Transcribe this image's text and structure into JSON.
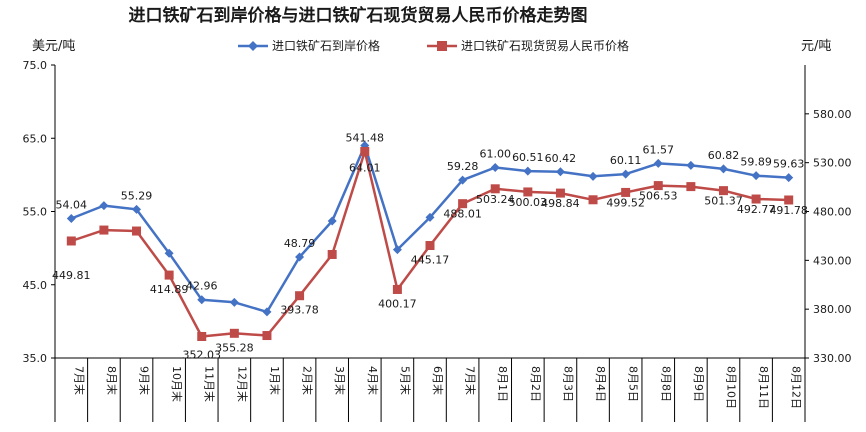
{
  "chart_data": {
    "type": "line",
    "title": "进口铁矿石到岸价格与进口铁矿石现货贸易人民币价格走势图",
    "left_unit": "美元/吨",
    "right_unit": "元/吨",
    "categories": [
      "7月末",
      "8月末",
      "9月末",
      "10月末",
      "11月末",
      "12月末",
      "1月末",
      "2月末",
      "3月末",
      "4月末",
      "5月末",
      "6月末",
      "7月末",
      "8月1日",
      "8月2日",
      "8月3日",
      "8月4日",
      "8月5日",
      "8月8日",
      "8月9日",
      "8月10日",
      "8月11日",
      "8月12日"
    ],
    "left_axis": {
      "min": 35,
      "max": 75,
      "ticks": [
        "35.0",
        "45.0",
        "55.0",
        "65.0",
        "75.0"
      ]
    },
    "right_axis": {
      "min": 330,
      "max": 630,
      "ticks": [
        "330.00",
        "380.00",
        "430.00",
        "480.00",
        "530.00",
        "580.00"
      ]
    },
    "legend_position": "top",
    "series": [
      {
        "name": "进口铁矿石到岸价格",
        "axis": "left",
        "color": "#4472c4",
        "marker": "diamond",
        "values": [
          54.04,
          55.8,
          55.29,
          49.3,
          42.96,
          42.6,
          41.3,
          48.79,
          53.7,
          64.01,
          49.8,
          54.2,
          59.28,
          61.0,
          60.51,
          60.42,
          59.8,
          60.11,
          61.57,
          61.3,
          60.82,
          59.89,
          59.63
        ],
        "labels": [
          "54.04",
          "",
          "55.29",
          "",
          "42.96",
          "",
          "",
          "48.79",
          "",
          "64.01",
          "",
          "",
          "59.28",
          "61.00",
          "60.51",
          "60.42",
          "",
          "60.11",
          "61.57",
          "",
          "60.82",
          "59.89",
          "59.63"
        ]
      },
      {
        "name": "进口铁矿石现货贸易人民币价格",
        "axis": "right",
        "color": "#be4b48",
        "marker": "square",
        "values": [
          449.81,
          461.0,
          460.0,
          414.89,
          352.03,
          355.28,
          353.0,
          393.78,
          436.0,
          541.48,
          400.17,
          445.17,
          488.01,
          503.24,
          500.03,
          498.84,
          492.0,
          499.52,
          506.53,
          505.5,
          501.37,
          492.77,
          491.78
        ],
        "labels": [
          "449.81",
          "",
          "",
          "414.89",
          "352.03",
          "355.28",
          "",
          "393.78",
          "",
          "541.48",
          "400.17",
          "445.17",
          "488.01",
          "503.24",
          "500.03",
          "498.84",
          "",
          "499.52",
          "506.53",
          "",
          "501.37",
          "492.77",
          "491.78"
        ]
      }
    ]
  }
}
